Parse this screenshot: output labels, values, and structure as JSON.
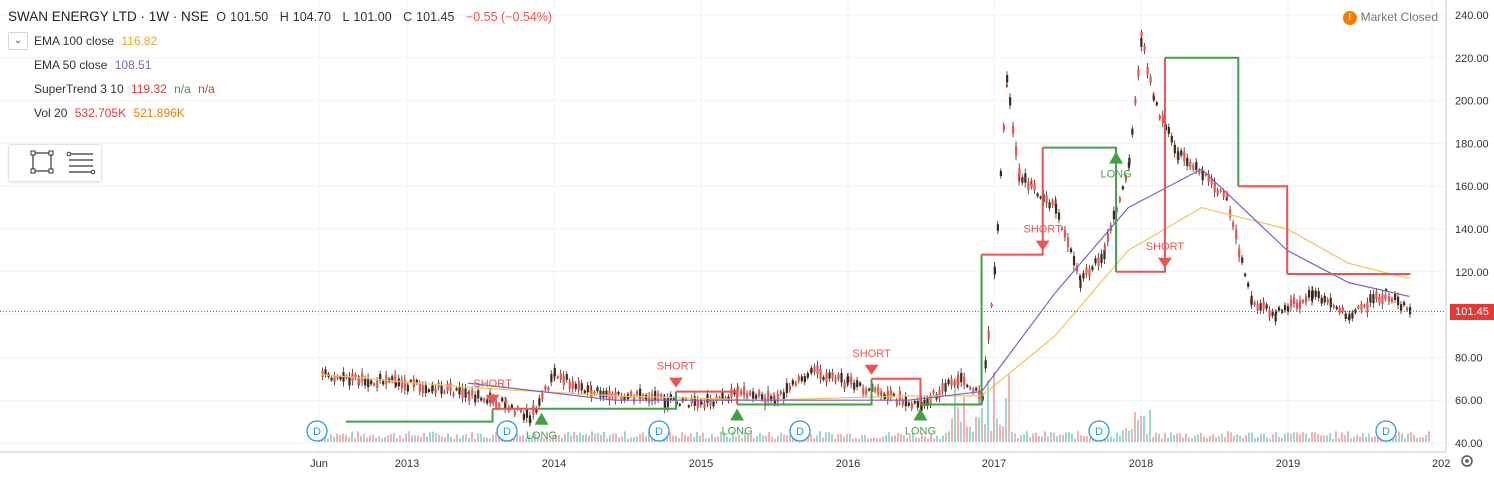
{
  "header": {
    "symbol": "SWAN ENERGY LTD · 1W · NSE",
    "o_label": "O",
    "o": "101.50",
    "h_label": "H",
    "h": "104.70",
    "l_label": "L",
    "l": "101.00",
    "c_label": "C",
    "c": "101.45",
    "change": "−0.55 (−0.54%)"
  },
  "market_status": "Market Closed",
  "market_icon": "!",
  "indicators": [
    {
      "name": "EMA 100 close",
      "value": "116.82",
      "color": "#e6a821"
    },
    {
      "name": "EMA 50 close",
      "value": "108.51",
      "color": "#7b61c4"
    },
    {
      "name": "SuperTrend 3 10",
      "value": "119.32",
      "extra1": "n/a",
      "extra2": "n/a",
      "color": "#e53935"
    },
    {
      "name": "Vol 20",
      "value": "532.705K",
      "extra1": "521.896K",
      "color": "#e53935",
      "color2": "#f57c00"
    }
  ],
  "colors": {
    "up": "#26a69a",
    "down": "#ef5350",
    "candle_body": "#3a2a1a",
    "supertrend_up": "#43a047",
    "supertrend_down": "#ef5350",
    "ema100": "#f7c15a",
    "ema50": "#7b61c4",
    "price_line": "#e53935"
  },
  "price_tag": "101.45",
  "signals": [
    {
      "label": "SHORT",
      "type": "short",
      "date": "2013-08"
    },
    {
      "label": "LONG",
      "type": "long",
      "date": "2013-12"
    },
    {
      "label": "SHORT",
      "type": "short",
      "date": "2014-11"
    },
    {
      "label": "LONG",
      "type": "long",
      "date": "2015-04"
    },
    {
      "label": "SHORT",
      "type": "short",
      "date": "2016-03"
    },
    {
      "label": "LONG",
      "type": "long",
      "date": "2016-07"
    },
    {
      "label": "SHORT",
      "type": "short",
      "date": "2017-05"
    },
    {
      "label": "LONG",
      "type": "long",
      "date": "2017-11"
    },
    {
      "label": "SHORT",
      "type": "short",
      "date": "2018-03"
    }
  ],
  "dividend_markers": [
    "D",
    "D",
    "D",
    "D",
    "D",
    "D"
  ],
  "chart_data": {
    "type": "line",
    "title": "SWAN ENERGY LTD · 1W · NSE",
    "x_ticks": [
      "Jun",
      "2013",
      "2014",
      "2015",
      "2016",
      "2017",
      "2018",
      "2019",
      "202"
    ],
    "y_ticks": [
      "240.00",
      "220.00",
      "200.00",
      "180.00",
      "160.00",
      "140.00",
      "120.00",
      "100.00",
      "80.00",
      "60.00",
      "40.00"
    ],
    "ylim": [
      40,
      240
    ],
    "last_price": 101.45,
    "series": [
      {
        "name": "Price",
        "x": [
          "2012-06",
          "2012-09",
          "2012-12",
          "2013-03",
          "2013-06",
          "2013-09",
          "2013-11",
          "2014-01",
          "2014-04",
          "2014-07",
          "2014-10",
          "2015-01",
          "2015-04",
          "2015-07",
          "2015-10",
          "2016-01",
          "2016-04",
          "2016-07",
          "2016-10",
          "2016-12",
          "2017-01",
          "2017-02",
          "2017-03",
          "2017-04",
          "2017-06",
          "2017-08",
          "2017-10",
          "2017-12",
          "2018-01",
          "2018-02",
          "2018-04",
          "2018-06",
          "2018-08",
          "2018-10",
          "2018-12",
          "2019-03",
          "2019-06",
          "2019-09",
          "2019-11"
        ],
        "values": [
          72,
          70,
          68,
          66,
          63,
          58,
          52,
          72,
          64,
          62,
          60,
          58,
          64,
          60,
          74,
          68,
          62,
          58,
          70,
          62,
          120,
          210,
          165,
          160,
          150,
          115,
          130,
          170,
          230,
          200,
          175,
          165,
          155,
          105,
          100,
          110,
          100,
          110,
          101.45
        ]
      },
      {
        "name": "EMA 100 close",
        "x": [
          "2012-06",
          "2013-06",
          "2014-06",
          "2015-06",
          "2016-06",
          "2016-12",
          "2017-06",
          "2017-12",
          "2018-06",
          "2019-01",
          "2019-06",
          "2019-11"
        ],
        "values": [
          72,
          66,
          62,
          60,
          62,
          62,
          90,
          130,
          150,
          140,
          124,
          116.82
        ]
      },
      {
        "name": "EMA 50 close",
        "x": [
          "2013-06",
          "2014-06",
          "2015-06",
          "2016-06",
          "2016-12",
          "2017-06",
          "2017-12",
          "2018-06",
          "2019-01",
          "2019-06",
          "2019-11"
        ],
        "values": [
          68,
          60,
          60,
          60,
          64,
          110,
          150,
          168,
          130,
          115,
          108.51
        ]
      },
      {
        "name": "SuperTrend 3 10",
        "x": [
          "2012-08",
          "2013-08",
          "2013-12",
          "2014-11",
          "2015-04",
          "2016-03",
          "2016-07",
          "2016-12",
          "2017-05",
          "2017-11",
          "2018-03",
          "2018-09",
          "2019-01",
          "2019-11"
        ],
        "values": [
          50,
          56,
          56,
          64,
          58,
          70,
          58,
          128,
          178,
          120,
          220,
          160,
          119,
          119.32
        ]
      }
    ]
  }
}
